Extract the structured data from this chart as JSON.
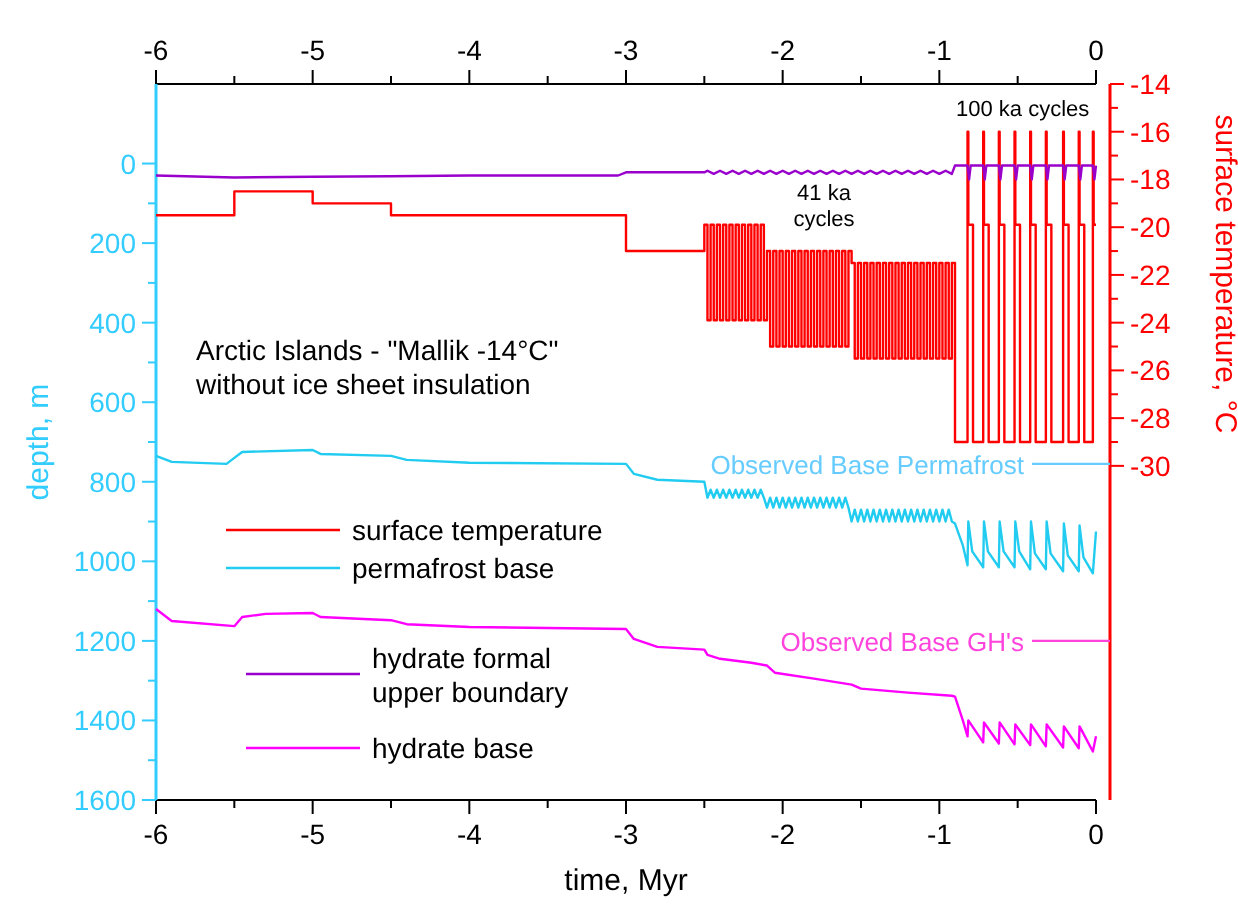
{
  "chart_data": {
    "type": "line",
    "xlabel": "time, Myr",
    "ylabel": "depth, m",
    "y2label": "surface temperature, °C",
    "xlim": [
      -6,
      0
    ],
    "xticks": [
      -6,
      {
        "value": -5.5,
        "label": null
      },
      -5,
      {
        "value": -4.5,
        "label": null
      },
      -4,
      {
        "value": -3.5,
        "label": null
      },
      -3,
      {
        "value": -2.5,
        "label": null
      },
      -2,
      {
        "value": -1.5,
        "label": null
      },
      -1,
      {
        "value": -0.5,
        "label": null
      },
      0
    ],
    "x2lim": [
      -6,
      0
    ],
    "x2ticks": [
      -6,
      {
        "value": -5.5,
        "label": null
      },
      -5,
      {
        "value": -4.5,
        "label": null
      },
      -4,
      {
        "value": -3.5,
        "label": null
      },
      -3,
      {
        "value": -2.5,
        "label": null
      },
      -2,
      {
        "value": -1.5,
        "label": null
      },
      -1,
      {
        "value": -0.5,
        "label": null
      },
      0
    ],
    "ylim": [
      1600,
      -200
    ],
    "yticks": [
      0,
      {
        "value": 100,
        "label": null
      },
      200,
      {
        "value": 300,
        "label": null
      },
      400,
      {
        "value": 500,
        "label": null
      },
      600,
      {
        "value": 700,
        "label": null
      },
      800,
      {
        "value": 900,
        "label": null
      },
      1000,
      {
        "value": 1100,
        "label": null
      },
      1200,
      {
        "value": 1300,
        "label": null
      },
      1400,
      {
        "value": 1500,
        "label": null
      },
      1600
    ],
    "y2lim": [
      -44,
      -14
    ],
    "y2ticks": [
      -14,
      {
        "value": -15,
        "label": null
      },
      -16,
      {
        "value": -17,
        "label": null
      },
      -18,
      {
        "value": -19,
        "label": null
      },
      -20,
      {
        "value": -21,
        "label": null
      },
      -22,
      {
        "value": -23,
        "label": null
      },
      -24,
      {
        "value": -25,
        "label": null
      },
      -26,
      {
        "value": -27,
        "label": null
      },
      -28,
      {
        "value": -29,
        "label": null
      },
      -30
    ],
    "legend": "left",
    "annotations": [
      "Arctic Islands - \"Mallik -14°C\"\nwithout ice sheet insulation",
      "41 ka\ncycles",
      "100 ka cycles"
    ],
    "ref_lines": [
      {
        "axis": "y",
        "value": 755,
        "label": "Observed Base Permafrost",
        "color": "#66ccff"
      },
      {
        "axis": "y",
        "value": 1200,
        "label": "Observed Base GH's",
        "color": "#ff44dd"
      }
    ],
    "series": [
      {
        "name": "surface temperature",
        "color": "#ff0000",
        "type": "step",
        "axis": "y2",
        "x": [
          -6,
          -5.5,
          -5,
          -4.5,
          -3,
          -2.5,
          -2.48,
          -2.46,
          -2.44,
          -2.42,
          -2.4,
          -2.38,
          -2.36,
          -2.34,
          -2.32,
          -2.3,
          -2.28,
          -2.26,
          -2.24,
          -2.22,
          -2.2,
          -2.18,
          -2.16,
          -2.14,
          -2.12,
          -2.1,
          -2.08,
          -2.06,
          -2.04,
          -2.02,
          -2,
          -1.98,
          -1.96,
          -1.94,
          -1.92,
          -1.9,
          -1.88,
          -1.86,
          -1.84,
          -1.82,
          -1.8,
          -1.78,
          -1.76,
          -1.74,
          -1.72,
          -1.7,
          -1.68,
          -1.66,
          -1.64,
          -1.62,
          -1.6,
          -1.58,
          -1.56,
          -1.54,
          -1.52,
          -1.5,
          -1.48,
          -1.46,
          -1.44,
          -1.42,
          -1.4,
          -1.38,
          -1.36,
          -1.34,
          -1.32,
          -1.3,
          -1.28,
          -1.26,
          -1.24,
          -1.22,
          -1.2,
          -1.18,
          -1.16,
          -1.14,
          -1.12,
          -1.1,
          -1.08,
          -1.06,
          -1.04,
          -1.02,
          -1,
          -0.98,
          -0.96,
          -0.94,
          -0.92,
          -0.9,
          -0.82,
          -0.815,
          -0.785,
          -0.72,
          -0.715,
          -0.685,
          -0.62,
          -0.615,
          -0.585,
          -0.52,
          -0.515,
          -0.485,
          -0.42,
          -0.415,
          -0.385,
          -0.32,
          -0.315,
          -0.285,
          -0.21,
          -0.205,
          -0.175,
          -0.11,
          -0.105,
          -0.075,
          -0.02,
          -0.015,
          0
        ],
        "values": [
          -19.5,
          -18.5,
          -19,
          -19.5,
          -21,
          -19.9,
          -23.9,
          -19.9,
          -23.9,
          -19.9,
          -23.9,
          -19.9,
          -23.9,
          -19.9,
          -23.9,
          -19.9,
          -23.9,
          -19.9,
          -23.9,
          -19.9,
          -23.9,
          -19.9,
          -23.9,
          -19.9,
          -23.9,
          -21,
          -25,
          -21,
          -25,
          -21,
          -25,
          -21,
          -25,
          -21,
          -25,
          -21,
          -25,
          -21,
          -25,
          -21,
          -25,
          -21,
          -25,
          -21,
          -25,
          -21,
          -25,
          -21,
          -25,
          -21,
          -25,
          -21,
          -21.5,
          -25.5,
          -21.5,
          -25.5,
          -21.5,
          -25.5,
          -21.5,
          -25.5,
          -21.5,
          -25.5,
          -21.5,
          -25.5,
          -21.5,
          -25.5,
          -21.5,
          -25.5,
          -21.5,
          -25.5,
          -21.5,
          -25.5,
          -21.5,
          -25.5,
          -21.5,
          -25.5,
          -21.5,
          -25.5,
          -21.5,
          -25.5,
          -21.5,
          -25.5,
          -21.5,
          -25.5,
          -21.5,
          -29,
          -16,
          -19.9,
          -29,
          -16,
          -19.9,
          -29,
          -16,
          -19.9,
          -29,
          -16,
          -19.9,
          -29,
          -16,
          -19.9,
          -29,
          -16,
          -19.9,
          -29,
          -16,
          -19.9,
          -29,
          -16,
          -19.9,
          -29,
          -16,
          -19.9,
          -19.9
        ]
      },
      {
        "name": "permafrost base",
        "color": "#22ccf0",
        "type": "line",
        "x": [
          -6,
          -5.9,
          -5.55,
          -5.5,
          -5.45,
          -5,
          -4.95,
          -4.5,
          -4.4,
          -4,
          -3,
          -2.95,
          -2.8,
          -2.5,
          -2.48,
          -2.46,
          -2.44,
          -2.42,
          -2.4,
          -2.38,
          -2.36,
          -2.34,
          -2.32,
          -2.3,
          -2.28,
          -2.26,
          -2.24,
          -2.22,
          -2.2,
          -2.18,
          -2.16,
          -2.14,
          -2.12,
          -2.1,
          -2.08,
          -2.06,
          -2.04,
          -2.02,
          -2,
          -1.98,
          -1.96,
          -1.94,
          -1.92,
          -1.9,
          -1.88,
          -1.86,
          -1.84,
          -1.82,
          -1.8,
          -1.78,
          -1.76,
          -1.74,
          -1.72,
          -1.7,
          -1.68,
          -1.66,
          -1.64,
          -1.62,
          -1.6,
          -1.58,
          -1.56,
          -1.54,
          -1.52,
          -1.5,
          -1.48,
          -1.46,
          -1.44,
          -1.42,
          -1.4,
          -1.38,
          -1.36,
          -1.34,
          -1.32,
          -1.3,
          -1.28,
          -1.26,
          -1.24,
          -1.22,
          -1.2,
          -1.18,
          -1.16,
          -1.14,
          -1.12,
          -1.1,
          -1.08,
          -1.06,
          -1.04,
          -1.02,
          -1,
          -0.98,
          -0.96,
          -0.94,
          -0.92,
          -0.9,
          -0.85,
          -0.82,
          -0.815,
          -0.79,
          -0.72,
          -0.715,
          -0.69,
          -0.62,
          -0.615,
          -0.59,
          -0.52,
          -0.515,
          -0.49,
          -0.42,
          -0.415,
          -0.39,
          -0.32,
          -0.315,
          -0.29,
          -0.21,
          -0.205,
          -0.18,
          -0.11,
          -0.105,
          -0.08,
          -0.02,
          0
        ],
        "values": [
          735,
          750,
          755,
          740,
          725,
          720,
          730,
          735,
          745,
          752,
          755,
          780,
          795,
          800,
          840,
          820,
          840,
          820,
          840,
          820,
          840,
          820,
          840,
          820,
          840,
          820,
          840,
          820,
          840,
          820,
          840,
          820,
          840,
          865,
          840,
          865,
          840,
          865,
          840,
          865,
          840,
          865,
          840,
          865,
          840,
          865,
          840,
          865,
          840,
          865,
          840,
          865,
          840,
          865,
          840,
          865,
          840,
          865,
          840,
          865,
          900,
          870,
          900,
          870,
          900,
          870,
          900,
          870,
          900,
          870,
          900,
          870,
          900,
          870,
          900,
          870,
          900,
          870,
          900,
          870,
          900,
          870,
          900,
          870,
          900,
          870,
          900,
          870,
          900,
          870,
          900,
          870,
          900,
          905,
          960,
          1010,
          900,
          975,
          1015,
          900,
          975,
          1015,
          900,
          975,
          1015,
          900,
          975,
          1020,
          900,
          980,
          1020,
          900,
          980,
          1025,
          905,
          985,
          1025,
          910,
          990,
          1030,
          925
        ]
      },
      {
        "name": "hydrate formal upper boundary",
        "color": "#9900cc",
        "type": "line",
        "x": [
          -6,
          -5.5,
          -5,
          -4.5,
          -4,
          -3.05,
          -3,
          -2.5,
          -2.48,
          -2.44,
          -2.4,
          -2.36,
          -2.32,
          -2.28,
          -2.24,
          -2.2,
          -2.16,
          -2.12,
          -2.08,
          -2.04,
          -2,
          -1.96,
          -1.92,
          -1.88,
          -1.84,
          -1.8,
          -1.76,
          -1.72,
          -1.68,
          -1.64,
          -1.6,
          -1.56,
          -1.52,
          -1.48,
          -1.44,
          -1.4,
          -1.36,
          -1.32,
          -1.28,
          -1.24,
          -1.2,
          -1.16,
          -1.12,
          -1.08,
          -1.04,
          -1,
          -0.96,
          -0.92,
          -0.9,
          -0.82,
          -0.81,
          -0.8,
          -0.72,
          -0.71,
          -0.7,
          -0.62,
          -0.61,
          -0.6,
          -0.52,
          -0.51,
          -0.5,
          -0.42,
          -0.41,
          -0.4,
          -0.32,
          -0.31,
          -0.3,
          -0.21,
          -0.2,
          -0.19,
          -0.11,
          -0.1,
          -0.09,
          -0.02,
          -0.01,
          0
        ],
        "values": [
          30,
          35,
          33,
          32,
          30,
          30,
          22,
          22,
          18,
          26,
          18,
          26,
          18,
          26,
          18,
          26,
          18,
          26,
          18,
          26,
          18,
          26,
          18,
          26,
          18,
          26,
          18,
          26,
          18,
          26,
          18,
          26,
          18,
          26,
          18,
          26,
          18,
          26,
          18,
          26,
          18,
          26,
          18,
          26,
          18,
          26,
          18,
          26,
          5,
          5,
          40,
          5,
          5,
          40,
          5,
          5,
          40,
          5,
          5,
          40,
          5,
          5,
          40,
          5,
          5,
          40,
          5,
          5,
          40,
          5,
          5,
          40,
          5,
          5,
          40,
          5
        ]
      },
      {
        "name": "hydrate base",
        "color": "#ff00ff",
        "type": "line",
        "x": [
          -6,
          -5.9,
          -5.5,
          -5.45,
          -5.3,
          -5,
          -4.95,
          -4.5,
          -4.4,
          -4,
          -3,
          -2.95,
          -2.8,
          -2.5,
          -2.48,
          -2.4,
          -2.3,
          -2.2,
          -2.1,
          -2.05,
          -1.8,
          -1.56,
          -1.5,
          -1.2,
          -0.92,
          -0.9,
          -0.85,
          -0.82,
          -0.815,
          -0.72,
          -0.715,
          -0.62,
          -0.615,
          -0.52,
          -0.515,
          -0.42,
          -0.415,
          -0.32,
          -0.315,
          -0.21,
          -0.205,
          -0.11,
          -0.105,
          -0.02,
          0
        ],
        "values": [
          1120,
          1150,
          1163,
          1140,
          1132,
          1130,
          1140,
          1148,
          1158,
          1165,
          1170,
          1195,
          1215,
          1222,
          1235,
          1245,
          1250,
          1255,
          1262,
          1280,
          1295,
          1310,
          1320,
          1330,
          1338,
          1340,
          1400,
          1440,
          1400,
          1455,
          1405,
          1458,
          1405,
          1460,
          1410,
          1462,
          1410,
          1465,
          1410,
          1468,
          1415,
          1470,
          1415,
          1478,
          1440
        ]
      }
    ]
  }
}
